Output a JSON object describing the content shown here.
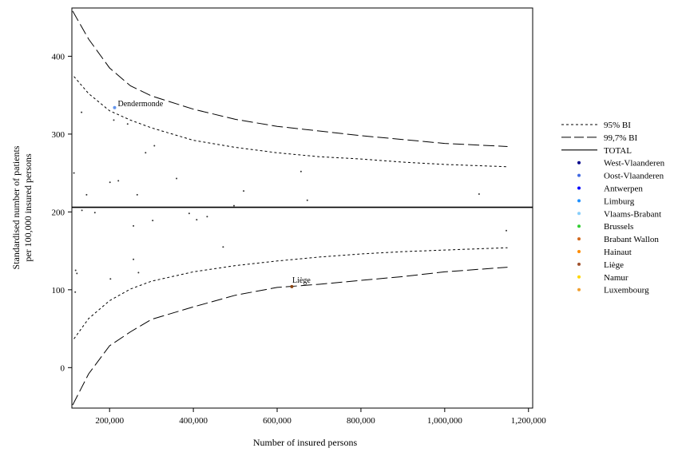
{
  "chart_data": {
    "type": "scatter",
    "title": "",
    "xlabel": "Number of insured persons",
    "ylabel_lines": [
      "Standardised number of patients",
      "per 100,000 insured persons"
    ],
    "xlim": [
      110000,
      1210000
    ],
    "ylim": [
      -52,
      462
    ],
    "x_ticks": [
      200000,
      400000,
      600000,
      800000,
      1000000,
      1200000
    ],
    "x_tick_labels": [
      "200,000",
      "400,000",
      "600,000",
      "800,000",
      "1,000,000",
      "1,200,000"
    ],
    "y_ticks": [
      0,
      100,
      200,
      300,
      400
    ],
    "y_tick_labels": [
      "0",
      "100",
      "200",
      "300",
      "400"
    ],
    "grid": false,
    "legend_position": "right",
    "total": 206,
    "reference_lines": [
      {
        "name": "95% BI",
        "style": "dotted",
        "x": [
          115000,
          150000,
          200000,
          250000,
          300000,
          400000,
          500000,
          600000,
          700000,
          800000,
          900000,
          1000000,
          1150000
        ],
        "upper": [
          374,
          352,
          330,
          318,
          308,
          292,
          283,
          276,
          271,
          268,
          264,
          261,
          258
        ],
        "lower": [
          37,
          63,
          86,
          101,
          111,
          123,
          131,
          137,
          142,
          146,
          149,
          151,
          154
        ]
      },
      {
        "name": "99,7% BI",
        "style": "dashed",
        "x": [
          112000,
          150000,
          200000,
          250000,
          300000,
          400000,
          500000,
          600000,
          700000,
          800000,
          900000,
          1000000,
          1150000
        ],
        "upper": [
          458,
          422,
          385,
          362,
          349,
          332,
          319,
          310,
          304,
          298,
          293,
          288,
          284
        ],
        "lower": [
          -48,
          -8,
          28,
          46,
          62,
          78,
          93,
          103,
          107,
          112,
          117,
          123,
          129
        ]
      }
    ],
    "series": [
      {
        "name": "West-Vlaanderen",
        "color": "#00008b",
        "points": []
      },
      {
        "name": "Oost-Vlaanderen",
        "color": "#4169e1",
        "points": []
      },
      {
        "name": "Antwerpen",
        "color": "#0000ff",
        "points": []
      },
      {
        "name": "Limburg",
        "color": "#1e90ff",
        "points": []
      },
      {
        "name": "Vlaams-Brabant",
        "color": "#87cefa",
        "points": []
      },
      {
        "name": "Brussels",
        "color": "#32cd32",
        "points": []
      },
      {
        "name": "Brabant Wallon",
        "color": "#d2691e",
        "points": []
      },
      {
        "name": "Hainaut",
        "color": "#ff8c00",
        "points": []
      },
      {
        "name": "Liège",
        "color": "#a0522d",
        "points": []
      },
      {
        "name": "Namur",
        "color": "#ffd700",
        "points": []
      },
      {
        "name": "Luxembourg",
        "color": "#f0a030",
        "points": []
      }
    ],
    "points": [
      {
        "x": 212000,
        "y": 334,
        "color": "#6495ed",
        "label": "Dendermonde"
      },
      {
        "x": 635000,
        "y": 104,
        "color": "#8b4513",
        "label": "Liège"
      },
      {
        "x": 133000,
        "y": 328,
        "color": "#333333"
      },
      {
        "x": 210000,
        "y": 318,
        "color": "#333333"
      },
      {
        "x": 243000,
        "y": 313,
        "color": "#333333"
      },
      {
        "x": 307000,
        "y": 285,
        "color": "#333333"
      },
      {
        "x": 286000,
        "y": 276,
        "color": "#333333"
      },
      {
        "x": 115000,
        "y": 250,
        "color": "#333333"
      },
      {
        "x": 360000,
        "y": 243,
        "color": "#333333"
      },
      {
        "x": 221000,
        "y": 240,
        "color": "#333333"
      },
      {
        "x": 201000,
        "y": 238,
        "color": "#333333"
      },
      {
        "x": 520000,
        "y": 227,
        "color": "#333333"
      },
      {
        "x": 145000,
        "y": 222,
        "color": "#333333"
      },
      {
        "x": 266000,
        "y": 222,
        "color": "#333333"
      },
      {
        "x": 657000,
        "y": 252,
        "color": "#333333"
      },
      {
        "x": 672000,
        "y": 215,
        "color": "#333333"
      },
      {
        "x": 1082000,
        "y": 223,
        "color": "#333333"
      },
      {
        "x": 497000,
        "y": 208,
        "color": "#333333"
      },
      {
        "x": 134000,
        "y": 202,
        "color": "#333333"
      },
      {
        "x": 165000,
        "y": 199,
        "color": "#333333"
      },
      {
        "x": 390000,
        "y": 198,
        "color": "#333333"
      },
      {
        "x": 433000,
        "y": 194,
        "color": "#333333"
      },
      {
        "x": 408000,
        "y": 190,
        "color": "#333333"
      },
      {
        "x": 303000,
        "y": 189,
        "color": "#333333"
      },
      {
        "x": 257000,
        "y": 182,
        "color": "#333333"
      },
      {
        "x": 1147000,
        "y": 176,
        "color": "#333333"
      },
      {
        "x": 471000,
        "y": 155,
        "color": "#333333"
      },
      {
        "x": 257000,
        "y": 139,
        "color": "#333333"
      },
      {
        "x": 119000,
        "y": 125,
        "color": "#333333"
      },
      {
        "x": 122000,
        "y": 121,
        "color": "#333333"
      },
      {
        "x": 269000,
        "y": 122,
        "color": "#333333"
      },
      {
        "x": 202000,
        "y": 114,
        "color": "#333333"
      },
      {
        "x": 118000,
        "y": 97,
        "color": "#333333"
      }
    ],
    "legend_entries": [
      {
        "label": "95% BI",
        "kind": "line",
        "style": "dotted"
      },
      {
        "label": "99,7% BI",
        "kind": "line",
        "style": "dashed"
      },
      {
        "label": "TOTAL",
        "kind": "line",
        "style": "solid"
      },
      {
        "label": "West-Vlaanderen",
        "kind": "dot",
        "color": "#00008b"
      },
      {
        "label": "Oost-Vlaanderen",
        "kind": "dot",
        "color": "#4169e1"
      },
      {
        "label": "Antwerpen",
        "kind": "dot",
        "color": "#0000ff"
      },
      {
        "label": "Limburg",
        "kind": "dot",
        "color": "#1e90ff"
      },
      {
        "label": "Vlaams-Brabant",
        "kind": "dot",
        "color": "#87cefa"
      },
      {
        "label": "Brussels",
        "kind": "dot",
        "color": "#32cd32"
      },
      {
        "label": "Brabant Wallon",
        "kind": "dot",
        "color": "#d2691e"
      },
      {
        "label": "Hainaut",
        "kind": "dot",
        "color": "#ff8c00"
      },
      {
        "label": "Liège",
        "kind": "dot",
        "color": "#a0522d"
      },
      {
        "label": "Namur",
        "kind": "dot",
        "color": "#ffd700"
      },
      {
        "label": "Luxembourg",
        "kind": "dot",
        "color": "#f0a030"
      }
    ]
  }
}
